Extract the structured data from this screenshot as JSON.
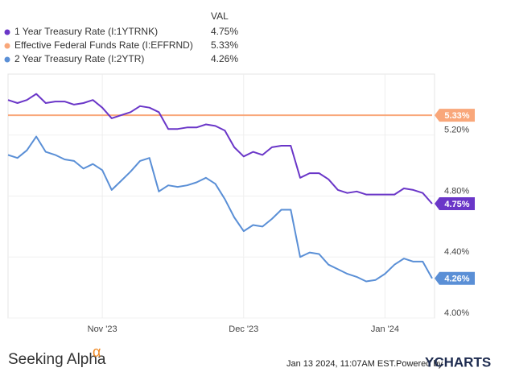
{
  "chart_data": {
    "type": "line",
    "legend_header": "VAL",
    "categories": [
      null,
      null,
      null,
      null,
      null,
      null,
      null,
      null,
      null,
      null,
      "Nov '23",
      null,
      null,
      null,
      null,
      null,
      null,
      null,
      null,
      null,
      null,
      null,
      null,
      null,
      null,
      "Dec '23",
      null,
      null,
      null,
      null,
      null,
      null,
      null,
      null,
      null,
      null,
      null,
      null,
      null,
      null,
      "Jan '24",
      null,
      null,
      null,
      null,
      null
    ],
    "series": [
      {
        "name": "1 Year Treasury Rate (I:1YTRNK)",
        "color": "#6a36c8",
        "last_label": "4.75%",
        "values": [
          5.43,
          5.41,
          5.43,
          5.47,
          5.41,
          5.42,
          5.42,
          5.4,
          5.41,
          5.43,
          5.38,
          5.31,
          5.33,
          5.35,
          5.39,
          5.38,
          5.35,
          5.24,
          5.24,
          5.25,
          5.25,
          5.27,
          5.26,
          5.23,
          5.12,
          5.06,
          5.09,
          5.07,
          5.12,
          5.13,
          5.13,
          4.92,
          4.95,
          4.95,
          4.91,
          4.84,
          4.82,
          4.83,
          4.81,
          4.81,
          4.81,
          4.81,
          4.85,
          4.84,
          4.82,
          4.75
        ]
      },
      {
        "name": "Effective Federal Funds Rate (I:EFFRND)",
        "color": "#f9a77a",
        "last_label": "5.33%",
        "values": [
          5.33,
          5.33,
          5.33,
          5.33,
          5.33,
          5.33,
          5.33,
          5.33,
          5.33,
          5.33,
          5.33,
          5.33,
          5.33,
          5.33,
          5.33,
          5.33,
          5.33,
          5.33,
          5.33,
          5.33,
          5.33,
          5.33,
          5.33,
          5.33,
          5.33,
          5.33,
          5.33,
          5.33,
          5.33,
          5.33,
          5.33,
          5.33,
          5.33,
          5.33,
          5.33,
          5.33,
          5.33,
          5.33,
          5.33,
          5.33,
          5.33,
          5.33,
          5.33,
          5.33,
          5.33,
          5.33
        ]
      },
      {
        "name": "2 Year Treasury Rate (I:2YTR)",
        "color": "#5a8fd6",
        "last_label": "4.26%",
        "values": [
          5.07,
          5.05,
          5.1,
          5.19,
          5.09,
          5.07,
          5.04,
          5.03,
          4.98,
          5.01,
          4.97,
          4.84,
          4.9,
          4.96,
          5.03,
          5.05,
          4.83,
          4.87,
          4.86,
          4.87,
          4.89,
          4.92,
          4.88,
          4.78,
          4.66,
          4.57,
          4.61,
          4.6,
          4.65,
          4.71,
          4.71,
          4.4,
          4.43,
          4.42,
          4.35,
          4.32,
          4.29,
          4.27,
          4.24,
          4.25,
          4.29,
          4.35,
          4.39,
          4.37,
          4.37,
          4.26
        ]
      }
    ],
    "ylim": [
      4.0,
      5.6
    ],
    "yticks": [
      {
        "value": 4.0,
        "label": "4.00%"
      },
      {
        "value": 4.4,
        "label": "4.40%"
      },
      {
        "value": 4.8,
        "label": "4.80%"
      },
      {
        "value": 5.2,
        "label": "5.20%"
      }
    ],
    "grid": true
  },
  "footer": {
    "brand": "Seeking Alpha",
    "brand_symbol": "α",
    "timestamp": "Jan 13 2024, 11:07AM EST.",
    "powered_by": "Powered by",
    "provider": "YCHARTS"
  }
}
